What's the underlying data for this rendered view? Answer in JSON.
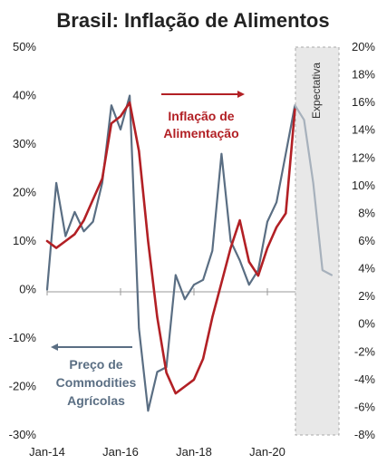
{
  "chart_data": {
    "type": "line",
    "title": "Brasil: Inflação de Alimentos",
    "x_ticks": [
      "Jan-14",
      "Jan-16",
      "Jan-18",
      "Jan-20"
    ],
    "y_left": {
      "range": [
        -30,
        50
      ],
      "ticks": [
        "50%",
        "40%",
        "30%",
        "20%",
        "10%",
        "0%",
        "-10%",
        "-20%",
        "-30%"
      ]
    },
    "y_right": {
      "range": [
        -8,
        20
      ],
      "ticks": [
        "20%",
        "18%",
        "16%",
        "14%",
        "12%",
        "10%",
        "8%",
        "6%",
        "4%",
        "2%",
        "0%",
        "-2%",
        "-4%",
        "-6%",
        "-8%"
      ]
    },
    "forecast_label": "Expectativa",
    "forecast_start": "Oct-20",
    "series": [
      {
        "name": "Preço de Commodities Agrícolas",
        "axis": "left",
        "color": "#5a6e83",
        "x": [
          "Jan-14",
          "Apr-14",
          "Jul-14",
          "Oct-14",
          "Jan-15",
          "Apr-15",
          "Jul-15",
          "Oct-15",
          "Jan-16",
          "Apr-16",
          "Jul-16",
          "Oct-16",
          "Jan-17",
          "Apr-17",
          "Jul-17",
          "Oct-17",
          "Jan-18",
          "Apr-18",
          "Jul-18",
          "Oct-18",
          "Jan-19",
          "Apr-19",
          "Jul-19",
          "Oct-19",
          "Jan-20",
          "Apr-20",
          "Jul-20",
          "Oct-20"
        ],
        "y": [
          0,
          22,
          11,
          16,
          12,
          14,
          22,
          38,
          33,
          40,
          -8,
          -25,
          -17,
          -16,
          3,
          -2,
          1,
          2,
          8,
          28,
          10,
          6,
          1,
          4,
          14,
          18,
          28,
          38
        ]
      },
      {
        "name": "Inflação de Alimentação",
        "axis": "right",
        "color": "#b22025",
        "x": [
          "Jan-14",
          "Apr-14",
          "Jul-14",
          "Oct-14",
          "Jan-15",
          "Apr-15",
          "Jul-15",
          "Oct-15",
          "Jan-16",
          "Apr-16",
          "Jul-16",
          "Oct-16",
          "Jan-17",
          "Apr-17",
          "Jul-17",
          "Oct-17",
          "Jan-18",
          "Apr-18",
          "Jul-18",
          "Oct-18",
          "Jan-19",
          "Apr-19",
          "Jul-19",
          "Oct-19",
          "Jan-20",
          "Apr-20",
          "Jul-20",
          "Oct-20"
        ],
        "y": [
          6,
          5.5,
          6,
          6.5,
          7.5,
          9,
          10.5,
          14.5,
          15,
          16,
          12.5,
          6,
          0.5,
          -3.5,
          -5,
          -4.5,
          -4,
          -2.5,
          0.5,
          3,
          5.5,
          7.5,
          4.5,
          3.5,
          5.5,
          7,
          8,
          15.5
        ]
      },
      {
        "name": "Expectativa",
        "axis": "left",
        "color": "#a7b1bc",
        "x": [
          "Oct-20",
          "Jan-21",
          "Apr-21",
          "Jul-21",
          "Oct-21"
        ],
        "y": [
          38,
          35,
          22,
          4,
          3
        ]
      }
    ],
    "annotations": [
      {
        "text_lines": [
          "Inflação de",
          "Alimentação"
        ],
        "color": "#b22025",
        "arrow": "right"
      },
      {
        "text_lines": [
          "Preço de",
          "Commodities",
          "Agrícolas"
        ],
        "color": "#5a6e83",
        "arrow": "left"
      }
    ]
  }
}
